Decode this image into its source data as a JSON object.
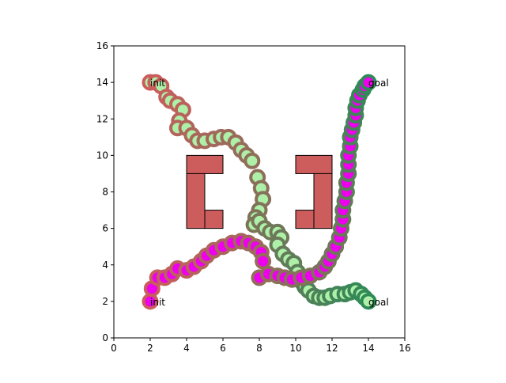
{
  "chart_data": {
    "type": "scatter",
    "title": "",
    "xlabel": "",
    "ylabel": "",
    "xlim": [
      0,
      16
    ],
    "ylim": [
      0,
      16
    ],
    "xticks": [
      "0",
      "2",
      "4",
      "6",
      "8",
      "10",
      "12",
      "14",
      "16"
    ],
    "yticks": [
      "0",
      "2",
      "4",
      "6",
      "8",
      "10",
      "12",
      "14",
      "16"
    ],
    "grid": false,
    "legend": "none",
    "colors": {
      "obstacle_fill": "#cd5c5c",
      "obstacle_stroke": "#000000",
      "path_a_inner": "#aef0a8",
      "path_b_inner": "#ee00ee"
    },
    "obstacles": [
      {
        "name": "left-bracket-top",
        "x": [
          4,
          6
        ],
        "y": [
          9,
          10
        ]
      },
      {
        "name": "left-bracket-spine",
        "x": [
          4,
          5
        ],
        "y": [
          6,
          9
        ]
      },
      {
        "name": "left-bracket-bottom",
        "x": [
          5,
          6
        ],
        "y": [
          6,
          7
        ]
      },
      {
        "name": "right-bracket-top",
        "x": [
          10,
          12
        ],
        "y": [
          9,
          10
        ]
      },
      {
        "name": "right-bracket-spine",
        "x": [
          11,
          12
        ],
        "y": [
          6,
          9
        ]
      },
      {
        "name": "right-bracket-bottom",
        "x": [
          10,
          11
        ],
        "y": [
          6,
          7
        ]
      }
    ],
    "labels": [
      {
        "text": "init",
        "x": 2.0,
        "y": 14.0
      },
      {
        "text": "goal",
        "x": 14.0,
        "y": 14.0
      },
      {
        "text": "init",
        "x": 2.0,
        "y": 2.0
      },
      {
        "text": "goal",
        "x": 14.0,
        "y": 2.0
      }
    ],
    "series": [
      {
        "start_color": "#cd5c5c",
        "end_color": "#2e8b57",
        "inner_color": "#aef0a8",
        "x": [
          2.0,
          2.3,
          2.6,
          2.9,
          3.1,
          3.5,
          3.8,
          3.6,
          3.5,
          4.0,
          4.3,
          4.6,
          5.0,
          5.5,
          5.9,
          6.3,
          6.7,
          7.0,
          7.3,
          7.6,
          7.9,
          8.1,
          8.2,
          8.0,
          7.8,
          7.7,
          8.0,
          8.3,
          8.6,
          9.0,
          9.2,
          9.0,
          9.3,
          9.6,
          9.9,
          10.1,
          10.3,
          10.5,
          10.7,
          11.0,
          11.3,
          11.6,
          11.9,
          12.3,
          12.7,
          13.0,
          13.3,
          13.6,
          13.8,
          14.0
        ],
        "y": [
          14.0,
          14.0,
          13.8,
          13.2,
          13.0,
          12.8,
          12.5,
          11.9,
          11.5,
          11.5,
          11.1,
          10.8,
          10.8,
          10.9,
          11.0,
          11.0,
          10.7,
          10.3,
          10.0,
          9.7,
          8.8,
          8.2,
          7.6,
          7.0,
          6.6,
          6.2,
          6.4,
          6.0,
          5.8,
          5.8,
          5.5,
          5.1,
          4.6,
          4.3,
          4.1,
          3.6,
          3.1,
          2.8,
          2.6,
          2.3,
          2.2,
          2.2,
          2.3,
          2.4,
          2.4,
          2.5,
          2.6,
          2.4,
          2.2,
          2.0
        ]
      },
      {
        "start_color": "#cd5c5c",
        "end_color": "#2e8b57",
        "inner_color": "#ee00ee",
        "x": [
          2.0,
          2.1,
          2.4,
          2.8,
          3.2,
          3.5,
          4.0,
          4.4,
          4.8,
          5.1,
          5.5,
          6.0,
          6.5,
          7.0,
          7.4,
          7.8,
          8.1,
          8.2,
          8.0,
          8.5,
          9.0,
          9.4,
          9.8,
          10.3,
          10.8,
          11.3,
          11.6,
          11.8,
          12.0,
          12.2,
          12.4,
          12.5,
          12.6,
          12.6,
          12.7,
          12.8,
          12.8,
          12.9,
          12.9,
          12.9,
          13.0,
          13.0,
          13.1,
          13.2,
          13.3,
          13.3,
          13.4,
          13.5,
          13.7,
          13.8,
          14.0
        ],
        "y": [
          2.0,
          2.7,
          3.3,
          3.3,
          3.5,
          3.8,
          3.7,
          3.9,
          4.2,
          4.5,
          4.8,
          5.0,
          5.2,
          5.3,
          5.2,
          5.0,
          4.7,
          4.2,
          3.3,
          3.5,
          3.4,
          3.3,
          3.2,
          3.3,
          3.4,
          3.6,
          3.9,
          4.2,
          4.6,
          5.0,
          5.5,
          6.0,
          6.5,
          7.0,
          7.5,
          8.0,
          8.5,
          9.0,
          9.5,
          10.0,
          10.5,
          11.0,
          11.4,
          11.8,
          12.2,
          12.6,
          13.0,
          13.3,
          13.6,
          13.8,
          14.0
        ]
      }
    ]
  }
}
